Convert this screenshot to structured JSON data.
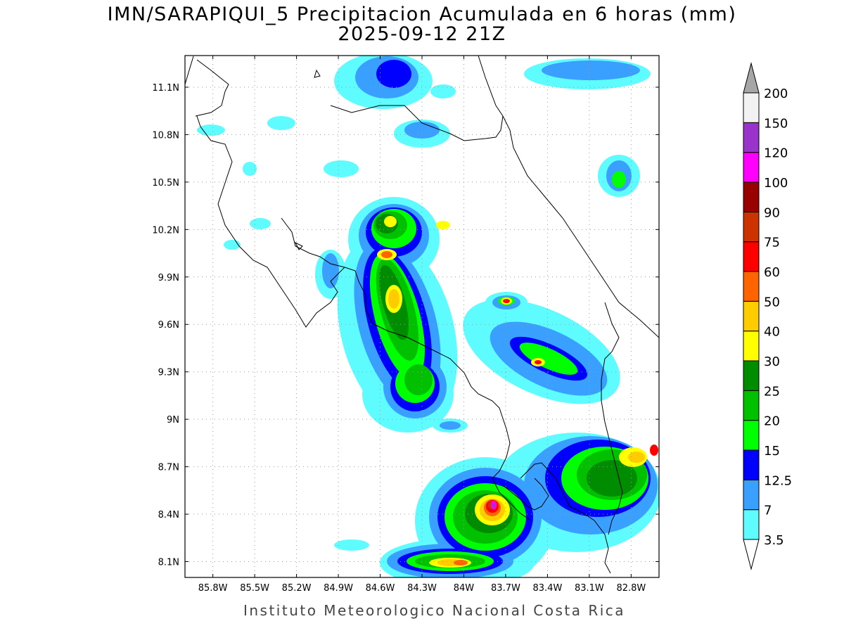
{
  "title": {
    "line1": "IMN/SARAPIQUI_5 Precipitacion Acumulada en 6 horas (mm)",
    "line2": "2025-09-12 21Z"
  },
  "footer": "Instituto Meteorologico Nacional Costa Rica",
  "map": {
    "lon_range": [
      -86.0,
      -82.6
    ],
    "lat_range": [
      8.0,
      11.3
    ],
    "lon_ticks": [
      "85.8W",
      "85.5W",
      "85.2W",
      "84.9W",
      "84.6W",
      "84.3W",
      "84W",
      "83.7W",
      "83.4W",
      "83.1W",
      "82.8W"
    ],
    "lat_ticks": [
      "11.1N",
      "10.8N",
      "10.5N",
      "10.2N",
      "9.9N",
      "9.6N",
      "9.3N",
      "9N",
      "8.7N",
      "8.4N",
      "8.1N"
    ],
    "grid": true
  },
  "colorbar": {
    "labels": [
      "3.5",
      "7",
      "12.5",
      "15",
      "20",
      "25",
      "30",
      "40",
      "50",
      "60",
      "75",
      "90",
      "100",
      "120",
      "150",
      "200"
    ],
    "colors": [
      "#5ffcff",
      "#3aa0ff",
      "#0000ff",
      "#00ff00",
      "#00c000",
      "#008c00",
      "#ffff00",
      "#ffcc00",
      "#ff6400",
      "#ff0000",
      "#cc3300",
      "#990000",
      "#ff00ff",
      "#9933cc",
      "#f2f2f2",
      "#a6a6a6"
    ]
  }
}
